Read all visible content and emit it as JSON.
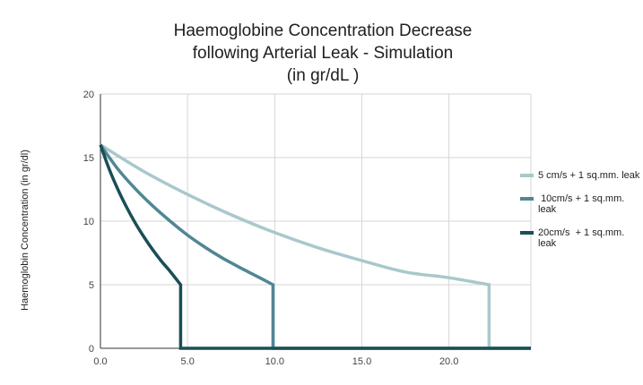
{
  "chart_data": {
    "type": "line",
    "title": "Haemoglobine Concentration Decrease\nfollowing Arterial Leak - Simulation\n(in gr/dL )",
    "title_lines": [
      "Haemoglobine Concentration Decrease",
      "following Arterial Leak - Simulation",
      "(in gr/dL )"
    ],
    "xlabel": "",
    "ylabel": "Haemoglobin Concentration (in gr/dl)",
    "xlim": [
      0,
      24.7
    ],
    "ylim": [
      0,
      20
    ],
    "x_ticks": [
      0,
      5,
      10,
      15,
      20
    ],
    "x_tick_labels": [
      "0.0",
      "5.0",
      "10.0",
      "15.0",
      "20.0"
    ],
    "y_ticks": [
      0,
      5,
      10,
      15,
      20
    ],
    "y_tick_labels": [
      "0",
      "5",
      "10",
      "15",
      "20"
    ],
    "grid": true,
    "legend_position": "right",
    "series": [
      {
        "name": "5 cm/s + 1 sq.mm. leak",
        "color": "#a8c8cc",
        "x": [
          0,
          2.5,
          5,
          7.5,
          10,
          12.5,
          15,
          17.5,
          20,
          22.3,
          22.3,
          24.7
        ],
        "y": [
          16,
          13.9,
          12.1,
          10.5,
          9.1,
          7.9,
          6.9,
          6.0,
          5.55,
          5.0,
          0,
          0
        ]
      },
      {
        "name": " 10cm/s + 1 sq.mm. leak",
        "color": "#4f8794",
        "x": [
          0,
          1,
          2,
          3,
          4,
          5,
          6,
          7,
          8,
          9,
          9.9,
          9.9,
          24.7
        ],
        "y": [
          16,
          14.1,
          12.55,
          11.2,
          10.0,
          8.9,
          7.95,
          7.1,
          6.35,
          5.65,
          5.0,
          0,
          0
        ]
      },
      {
        "name": "20cm/s  + 1 sq.mm. leak",
        "color": "#1b4e57",
        "x": [
          0,
          0.5,
          1,
          1.5,
          2,
          2.5,
          3,
          3.5,
          4,
          4.6,
          4.6,
          24.7
        ],
        "y": [
          16,
          14.1,
          12.5,
          11.1,
          9.85,
          8.75,
          7.75,
          6.85,
          6.05,
          5.0,
          0,
          0
        ]
      }
    ]
  }
}
